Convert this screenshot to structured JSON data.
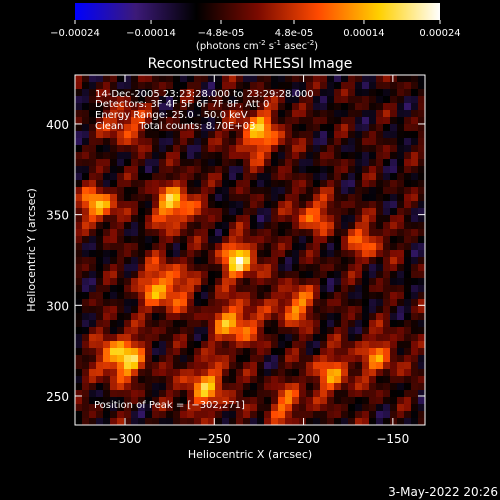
{
  "colorbar": {
    "ticks": [
      "-0.00024",
      "-0.00014",
      "-4.8e-05",
      "4.8e-05",
      "0.00014",
      "0.00024"
    ],
    "units_prefix": "(photons cm",
    "units_exp1": "-2",
    "units_mid1": " s",
    "units_exp2": "-1",
    "units_mid2": " asec",
    "units_exp3": "-2",
    "units_suffix": ")",
    "range": [
      -0.00024,
      0.00024
    ],
    "colormap": [
      "#0000ff",
      "#3c1a78",
      "#000000",
      "#7a0a00",
      "#ff4a00",
      "#ffd000",
      "#ffffff"
    ]
  },
  "chart_data": {
    "type": "heatmap",
    "title": "Reconstructed RHESSI Image",
    "xlabel": "Heliocentric X (arcsec)",
    "ylabel": "Heliocentric Y (arcsec)",
    "xlim": [
      -328,
      -132
    ],
    "ylim": [
      234,
      427
    ],
    "x_ticks": [
      -300,
      -250,
      -200,
      -150
    ],
    "x_tick_labels": [
      "−300",
      "−250",
      "−200",
      "−150"
    ],
    "y_ticks": [
      250,
      300,
      350,
      400
    ],
    "y_tick_labels": [
      "250",
      "300",
      "350",
      "400"
    ],
    "peak": {
      "x": -302,
      "y": 271
    },
    "annotations": {
      "time": "14-Dec-2005 23:23:28.000 to 23:29:28.000",
      "detectors": "Detectors: 3F 4F 5F 6F 7F 8F, Att 0",
      "energy": "Energy Range: 25.0 - 50.0 keV",
      "clean": "Clean     Total counts: 8.70E+03",
      "peak_label": "Position of Peak = [−302,271]"
    }
  },
  "timestamp": "3-May-2022 20:26"
}
